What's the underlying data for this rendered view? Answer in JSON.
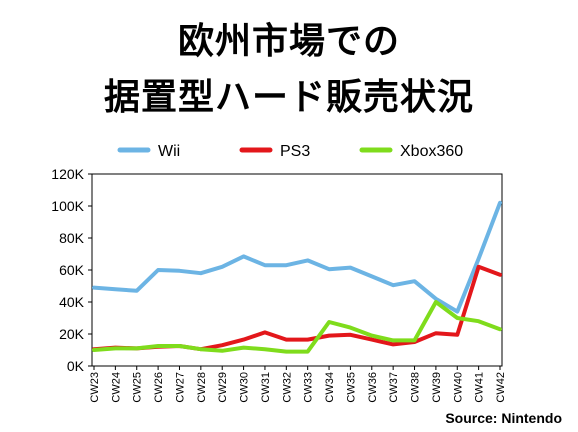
{
  "title_lines": [
    "欧州市場での",
    "据置型ハード販売状況"
  ],
  "source": "Source: Nintendo",
  "chart_data": {
    "type": "line",
    "categories": [
      "CW23",
      "CW24",
      "CW25",
      "CW26",
      "CW27",
      "CW28",
      "CW29",
      "CW30",
      "CW31",
      "CW32",
      "CW33",
      "CW34",
      "CW35",
      "CW36",
      "CW37",
      "CW38",
      "CW39",
      "CW40",
      "CW41",
      "CW42"
    ],
    "series": [
      {
        "name": "Wii",
        "color": "#6cb4e4",
        "values": [
          49000,
          48000,
          47000,
          60000,
          59500,
          58000,
          62000,
          68500,
          63000,
          63000,
          66000,
          60500,
          61500,
          56000,
          50500,
          53000,
          42000,
          34000,
          67000,
          102000
        ]
      },
      {
        "name": "PS3",
        "color": "#e3171b",
        "values": [
          10500,
          11500,
          11000,
          12000,
          12500,
          10500,
          13000,
          16500,
          21000,
          16500,
          16500,
          19000,
          19500,
          16500,
          13500,
          15000,
          20500,
          19500,
          62000,
          57000
        ]
      },
      {
        "name": "Xbox360",
        "color": "#7fdc1c",
        "values": [
          10000,
          11000,
          11000,
          12500,
          12500,
          10500,
          9500,
          11500,
          10500,
          9000,
          9000,
          27500,
          24000,
          19000,
          16000,
          16000,
          40000,
          30000,
          28000,
          23000
        ]
      }
    ],
    "y_ticks": [
      "0K",
      "20K",
      "40K",
      "60K",
      "80K",
      "100K",
      "120K"
    ],
    "ylim": [
      0,
      120000
    ],
    "legend_position": "top",
    "grid": false
  }
}
